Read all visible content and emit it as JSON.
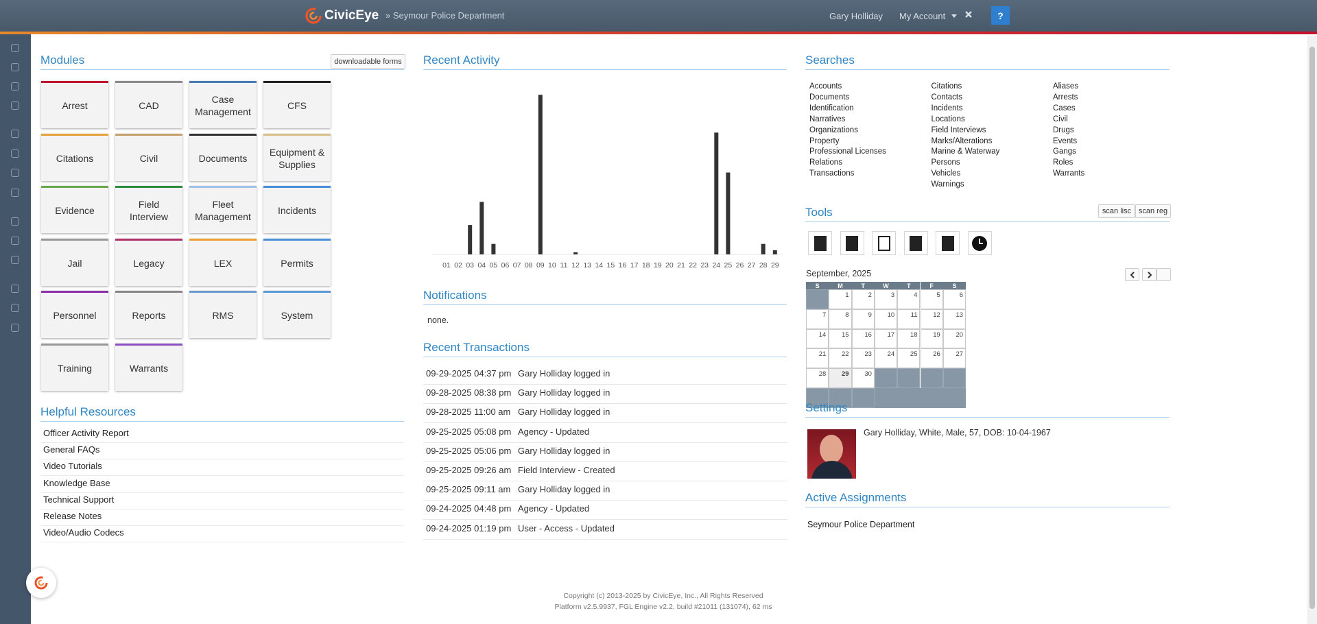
{
  "header": {
    "brand": "CivicEye",
    "agency": "» Seymour Police Department",
    "user": "Gary Holliday",
    "account": "My Account",
    "help": "?"
  },
  "modules": {
    "title": "Modules",
    "button": "downloadable forms",
    "items": [
      {
        "label": "Arrest",
        "color": "#c0152f"
      },
      {
        "label": "CAD",
        "color": "#8a8a8a"
      },
      {
        "label": "Case Management",
        "color": "#4a7ab5"
      },
      {
        "label": "CFS",
        "color": "#222222"
      },
      {
        "label": "Citations",
        "color": "#e8a33b"
      },
      {
        "label": "Civil",
        "color": "#c8a26b"
      },
      {
        "label": "Documents",
        "color": "#333333"
      },
      {
        "label": "Equipment & Supplies",
        "color": "#d8c08a"
      },
      {
        "label": "Evidence",
        "color": "#6aa84f"
      },
      {
        "label": "Field Interview",
        "color": "#2e8b3e"
      },
      {
        "label": "Fleet Management",
        "color": "#9ec3e6"
      },
      {
        "label": "Incidents",
        "color": "#4a90d9"
      },
      {
        "label": "Jail",
        "color": "#999999"
      },
      {
        "label": "Legacy",
        "color": "#b0306a"
      },
      {
        "label": "LEX",
        "color": "#f0a030"
      },
      {
        "label": "Permits",
        "color": "#4a90d9"
      },
      {
        "label": "Personnel",
        "color": "#8b2fa8"
      },
      {
        "label": "Reports",
        "color": "#888888"
      },
      {
        "label": "RMS",
        "color": "#6a9bd1"
      },
      {
        "label": "System",
        "color": "#5b9bd5"
      },
      {
        "label": "Training",
        "color": "#999999"
      },
      {
        "label": "Warrants",
        "color": "#8a4fc0"
      }
    ]
  },
  "helpful_resources": {
    "title": "Helpful Resources",
    "items": [
      "Officer Activity Report",
      "General FAQs",
      "Video Tutorials",
      "Knowledge Base",
      "Technical Support",
      "Release Notes",
      "Video/Audio Codecs"
    ]
  },
  "recent_activity": {
    "title": "Recent Activity"
  },
  "chart_data": {
    "type": "bar",
    "categories": [
      "01",
      "02",
      "03",
      "04",
      "05",
      "06",
      "07",
      "08",
      "09",
      "10",
      "11",
      "12",
      "13",
      "14",
      "15",
      "16",
      "17",
      "18",
      "19",
      "20",
      "21",
      "22",
      "23",
      "24",
      "25",
      "26",
      "27",
      "28",
      "29"
    ],
    "values": [
      0,
      0,
      14,
      25,
      5,
      0,
      0,
      0,
      76,
      0,
      0,
      1,
      0,
      0,
      0,
      0,
      0,
      0,
      0,
      0,
      0,
      0,
      0,
      58,
      39,
      0,
      0,
      5,
      2
    ],
    "color": "#333333",
    "ylim": [
      0,
      80
    ]
  },
  "notifications": {
    "title": "Notifications",
    "text": "none."
  },
  "recent_transactions": {
    "title": "Recent Transactions",
    "rows": [
      [
        "09-29-2025 04:37 pm",
        "Gary Holliday logged in"
      ],
      [
        "09-28-2025 08:38 pm",
        "Gary Holliday logged in"
      ],
      [
        "09-28-2025 11:00 am",
        "Gary Holliday logged in"
      ],
      [
        "09-25-2025 05:08 pm",
        "Agency - Updated"
      ],
      [
        "09-25-2025 05:06 pm",
        "Gary Holliday logged in"
      ],
      [
        "09-25-2025 09:26 am",
        "Field Interview - Created"
      ],
      [
        "09-25-2025 09:11 am",
        "Gary Holliday logged in"
      ],
      [
        "09-24-2025 04:48 pm",
        "Agency - Updated"
      ],
      [
        "09-24-2025 01:19 pm",
        "User - Access - Updated"
      ]
    ]
  },
  "searches": {
    "title": "Searches",
    "columns": [
      [
        "Accounts",
        "Documents",
        "Identification",
        "Narratives",
        "Organizations",
        "Property",
        "Professional Licenses",
        "Relations",
        "Transactions"
      ],
      [
        "Citations",
        "Contacts",
        "Incidents",
        "Locations",
        "Field Interviews",
        "Marks/Alterations",
        "Marine & Waterway",
        "Persons",
        "Vehicles",
        "Warnings"
      ],
      [
        "Aliases",
        "Arrests",
        "Cases",
        "Civil",
        "Drugs",
        "Events",
        "Gangs",
        "Roles",
        "Warrants"
      ]
    ]
  },
  "tools": {
    "title": "Tools",
    "buttons": [
      "scan lisc",
      "scan reg"
    ]
  },
  "calendar": {
    "month": "September, 2025",
    "weekdays": [
      "S",
      "M",
      "T",
      "W",
      "T",
      "F",
      "S"
    ],
    "days": [
      1,
      2,
      3,
      4,
      5,
      6,
      7,
      8,
      9,
      10,
      11,
      12,
      13,
      14,
      15,
      16,
      17,
      18,
      19,
      20,
      21,
      22,
      23,
      24,
      25,
      26,
      27,
      28,
      29,
      30
    ],
    "today": 29
  },
  "settings": {
    "title": "Settings",
    "profile": "Gary Holliday, White, Male, 57, DOB: 10-04-1967"
  },
  "active_assignments": {
    "title": "Active Assignments",
    "items": [
      "Seymour Police Department"
    ]
  },
  "footer": {
    "copyright": "Copyright (c) 2013-2025 by CivicEye, Inc., All Rights Reserved",
    "platform": "Platform v2.5.9937, FGL Engine v2.2, build #21011 (131074), 62 ms"
  }
}
